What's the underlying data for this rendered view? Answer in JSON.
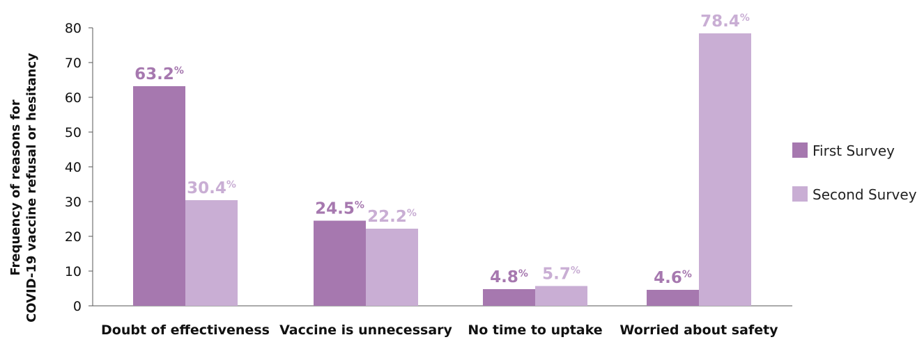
{
  "chart_data": {
    "type": "bar",
    "categories": [
      "Doubt of effectiveness",
      "Vaccine is unnecessary",
      "No time to uptake",
      "Worried about safety"
    ],
    "series": [
      {
        "name": "First Survey",
        "values": [
          63.2,
          24.5,
          4.8,
          4.6
        ],
        "color": "#a678af"
      },
      {
        "name": "Second Survey",
        "values": [
          30.4,
          22.2,
          5.7,
          78.4
        ],
        "color": "#c9aed4"
      }
    ],
    "data_labels": [
      [
        "63.2",
        "24.5",
        "4.8",
        "4.6"
      ],
      [
        "30.4",
        "22.2",
        "5.7",
        "78.4"
      ]
    ],
    "data_label_suffix": "%",
    "ylabel_lines": [
      "Frequency of reasons for",
      "COVID-19 vaccine refusal or hesitancy"
    ],
    "xlabel": "",
    "ylim": [
      0,
      80
    ],
    "yticks": [
      0,
      10,
      20,
      30,
      40,
      50,
      60,
      70,
      80
    ],
    "grid": false,
    "legend_position": "right"
  }
}
